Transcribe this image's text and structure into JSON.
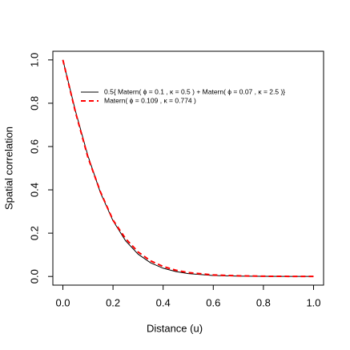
{
  "chart_data": {
    "type": "line",
    "x_label": "Distance (u)",
    "y_label": "Spatial correlation",
    "x": [
      0,
      0.05,
      0.1,
      0.15,
      0.2,
      0.25,
      0.3,
      0.35,
      0.4,
      0.45,
      0.5,
      0.6,
      0.7,
      0.8,
      0.9,
      1.0
    ],
    "series": [
      {
        "name": "0.5{ Matern( ϕ = 0.1 , κ = 0.5 ) + Matern( ϕ = 0.07 , κ = 2.5 )}",
        "color": "#000000",
        "dash": "solid",
        "values": [
          1,
          0.765,
          0.557,
          0.386,
          0.257,
          0.165,
          0.103,
          0.063,
          0.038,
          0.023,
          0.013,
          0.0045,
          0.0015,
          0.0005,
          0.0002,
          0.0001
        ]
      },
      {
        "name": "Matern( ϕ = 0.109 , κ = 0.774 )",
        "color": "#ff0000",
        "dash": "dashed",
        "values": [
          1,
          0.76,
          0.55,
          0.39,
          0.26,
          0.175,
          0.113,
          0.072,
          0.046,
          0.029,
          0.018,
          0.007,
          0.003,
          0.001,
          0.0004,
          0.0002
        ]
      }
    ],
    "xlim": [
      -0.04,
      1.04
    ],
    "ylim": [
      -0.04,
      1.04
    ],
    "xticks": [
      {
        "value": 0,
        "label": "0.0"
      },
      0.2,
      0.4,
      0.6,
      0.8,
      {
        "value": 1,
        "label": "1.0"
      }
    ],
    "yticks": [
      {
        "value": 0,
        "label": "0.0"
      },
      0.2,
      0.4,
      0.6,
      0.8,
      {
        "value": 1,
        "label": "1.0"
      }
    ],
    "grid": false
  }
}
